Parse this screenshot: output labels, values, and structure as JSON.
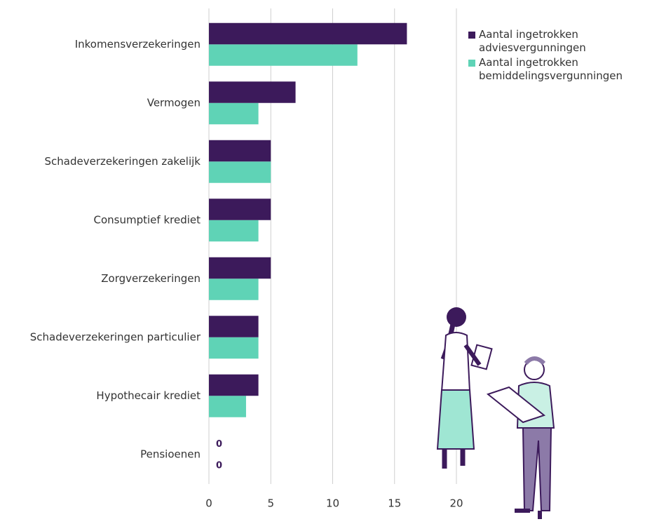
{
  "chart_data": {
    "type": "bar",
    "orientation": "horizontal",
    "categories": [
      "Inkomensverzekeringen",
      "Vermogen",
      "Schadeverzekeringen zakelijk",
      "Consumptief krediet",
      "Zorgverzekeringen",
      "Schadeverzekeringen particulier",
      "Hypothecair krediet",
      "Pensioenen"
    ],
    "series": [
      {
        "name": "Aantal ingetrokken adviesvergunningen",
        "color": "#3c1a5b",
        "label_color": "#ffffff",
        "values": [
          16,
          7,
          5,
          5,
          5,
          4,
          4,
          0
        ]
      },
      {
        "name": "Aantal ingetrokken bemiddelingsvergunningen",
        "color": "#5fd3b6",
        "label_color": "#3c1a5b",
        "values": [
          12,
          4,
          5,
          4,
          4,
          4,
          3,
          0
        ]
      }
    ],
    "xlim": [
      0,
      20
    ],
    "xticks": [
      0,
      5,
      10,
      15,
      20
    ],
    "grid": true,
    "legend": "upper right"
  }
}
